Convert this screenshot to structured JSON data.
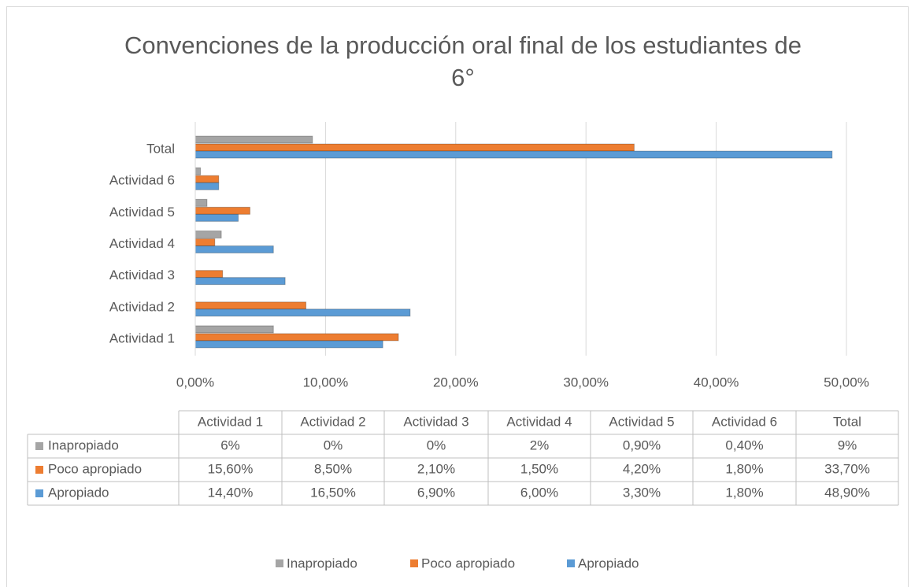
{
  "chart_data": {
    "type": "bar",
    "orientation": "horizontal",
    "title": "Convenciones de la producción oral final de los estudiantes de 6°",
    "categories": [
      "Actividad 1",
      "Actividad 2",
      "Actividad 3",
      "Actividad 4",
      "Actividad 5",
      "Actividad 6",
      "Total"
    ],
    "series": [
      {
        "name": "Inapropiado",
        "color": "#a5a5a5",
        "values": [
          6,
          0,
          0,
          2,
          0.9,
          0.4,
          9
        ],
        "value_labels": [
          "6%",
          "0%",
          "0%",
          "2%",
          "0,90%",
          "0,40%",
          "9%"
        ]
      },
      {
        "name": "Poco apropiado",
        "color": "#ed7d31",
        "values": [
          15.6,
          8.5,
          2.1,
          1.5,
          4.2,
          1.8,
          33.7
        ],
        "value_labels": [
          "15,60%",
          "8,50%",
          "2,10%",
          "1,50%",
          "4,20%",
          "1,80%",
          "33,70%"
        ]
      },
      {
        "name": "Apropiado",
        "color": "#5b9bd5",
        "values": [
          14.4,
          16.5,
          6.9,
          6.0,
          3.3,
          1.8,
          48.9
        ],
        "value_labels": [
          "14,40%",
          "16,50%",
          "6,90%",
          "6,00%",
          "3,30%",
          "1,80%",
          "48,90%"
        ]
      }
    ],
    "xlim": [
      0,
      50
    ],
    "xticks": [
      {
        "value": 0,
        "label": "0,00%"
      },
      {
        "value": 10,
        "label": "10,00%"
      },
      {
        "value": 20,
        "label": "20,00%"
      },
      {
        "value": 30,
        "label": "30,00%"
      },
      {
        "value": 40,
        "label": "40,00%"
      },
      {
        "value": 50,
        "label": "50,00%"
      }
    ],
    "grid": true,
    "legend": "bottom",
    "data_table": true
  }
}
